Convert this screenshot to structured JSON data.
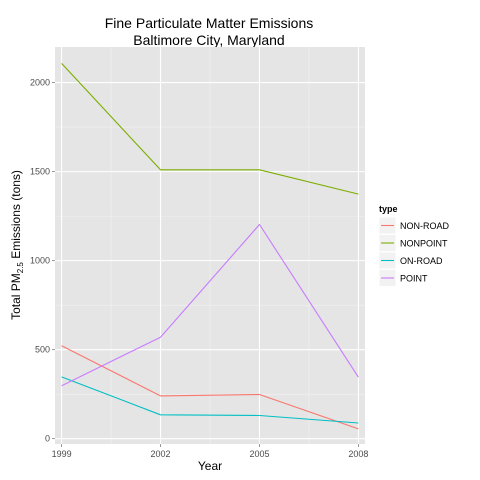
{
  "chart_data": {
    "type": "line",
    "title_line1": "Fine Particulate Matter Emissions",
    "title_line2": "Baltimore City, Maryland",
    "xlabel": "Year",
    "ylabel_prefix": "Total PM",
    "ylabel_subscript": "2.5",
    "ylabel_suffix": " Emissions (tons)",
    "x": [
      1999,
      2002,
      2005,
      2008
    ],
    "x_ticks": [
      "1999",
      "2002",
      "2005",
      "2008"
    ],
    "y_ticks": [
      "0",
      "500",
      "1000",
      "1500",
      "2000"
    ],
    "xlim": [
      1998.8,
      2008.2
    ],
    "ylim": [
      -30,
      2200
    ],
    "grid": true,
    "legend_title": "type",
    "legend_position": "right",
    "series": [
      {
        "name": "NON-ROAD",
        "color": "#f8766d",
        "values": [
          522,
          240,
          248,
          55
        ]
      },
      {
        "name": "NONPOINT",
        "color": "#7cae00",
        "values": [
          2108,
          1510,
          1510,
          1374
        ]
      },
      {
        "name": "ON-ROAD",
        "color": "#00bfc4",
        "values": [
          347,
          134,
          130,
          88
        ]
      },
      {
        "name": "POINT",
        "color": "#c77cff",
        "values": [
          297,
          570,
          1203,
          345
        ]
      }
    ]
  }
}
